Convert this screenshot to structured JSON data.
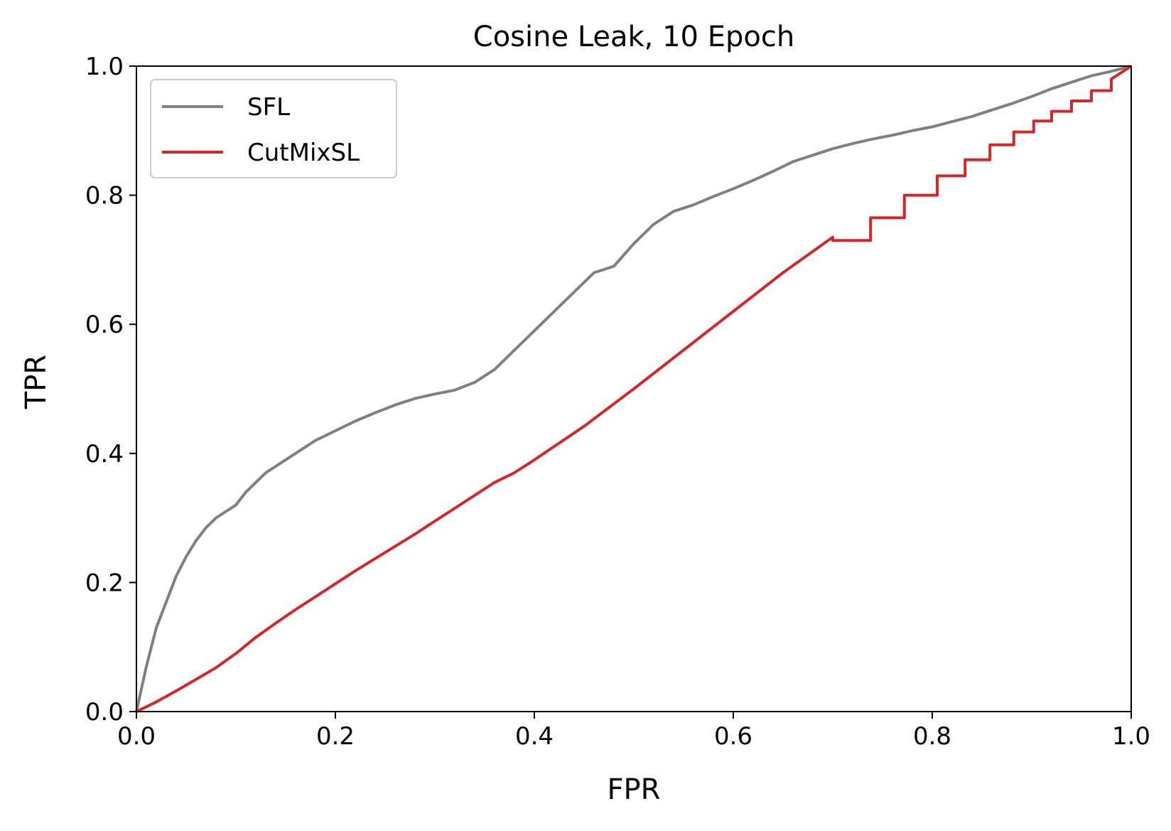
{
  "chart_data": {
    "type": "line",
    "title": "Cosine Leak, 10 Epoch",
    "xlabel": "FPR",
    "ylabel": "TPR",
    "xlim": [
      0.0,
      1.0
    ],
    "ylim": [
      0.0,
      1.0
    ],
    "grid": false,
    "legend_position": "upper-left",
    "x_ticks": [
      "0.0",
      "0.2",
      "0.4",
      "0.6",
      "0.8",
      "1.0"
    ],
    "y_ticks": [
      "0.0",
      "0.2",
      "0.4",
      "0.6",
      "0.8",
      "1.0"
    ],
    "series": [
      {
        "name": "SFL",
        "color": "#808080",
        "x": [
          0.0,
          0.005,
          0.01,
          0.015,
          0.02,
          0.03,
          0.04,
          0.05,
          0.06,
          0.07,
          0.08,
          0.09,
          0.1,
          0.11,
          0.12,
          0.13,
          0.14,
          0.16,
          0.18,
          0.2,
          0.22,
          0.24,
          0.26,
          0.28,
          0.3,
          0.32,
          0.34,
          0.36,
          0.38,
          0.4,
          0.42,
          0.44,
          0.46,
          0.48,
          0.5,
          0.52,
          0.54,
          0.56,
          0.58,
          0.6,
          0.62,
          0.64,
          0.66,
          0.68,
          0.7,
          0.72,
          0.74,
          0.76,
          0.78,
          0.8,
          0.82,
          0.84,
          0.86,
          0.88,
          0.9,
          0.92,
          0.94,
          0.96,
          0.98,
          1.0
        ],
        "y": [
          0.0,
          0.035,
          0.07,
          0.1,
          0.13,
          0.17,
          0.21,
          0.24,
          0.265,
          0.285,
          0.3,
          0.31,
          0.32,
          0.34,
          0.355,
          0.37,
          0.38,
          0.4,
          0.42,
          0.435,
          0.45,
          0.463,
          0.475,
          0.485,
          0.492,
          0.498,
          0.51,
          0.53,
          0.56,
          0.59,
          0.62,
          0.65,
          0.68,
          0.69,
          0.725,
          0.755,
          0.775,
          0.785,
          0.798,
          0.81,
          0.823,
          0.837,
          0.852,
          0.862,
          0.872,
          0.88,
          0.887,
          0.893,
          0.9,
          0.906,
          0.914,
          0.922,
          0.932,
          0.942,
          0.953,
          0.965,
          0.975,
          0.985,
          0.992,
          1.0
        ]
      },
      {
        "name": "CutMixSL",
        "color": "#d62728",
        "x": [
          0.0,
          0.02,
          0.04,
          0.06,
          0.08,
          0.1,
          0.12,
          0.14,
          0.16,
          0.18,
          0.2,
          0.22,
          0.24,
          0.26,
          0.28,
          0.3,
          0.32,
          0.34,
          0.36,
          0.38,
          0.4,
          0.45,
          0.5,
          0.55,
          0.6,
          0.65,
          0.7,
          0.7,
          0.738,
          0.738,
          0.772,
          0.772,
          0.805,
          0.805,
          0.833,
          0.833,
          0.858,
          0.858,
          0.882,
          0.882,
          0.902,
          0.902,
          0.92,
          0.92,
          0.94,
          0.94,
          0.96,
          0.96,
          0.98,
          0.98,
          1.0
        ],
        "y": [
          0.0,
          0.015,
          0.032,
          0.05,
          0.068,
          0.09,
          0.115,
          0.137,
          0.158,
          0.178,
          0.198,
          0.218,
          0.237,
          0.256,
          0.275,
          0.295,
          0.315,
          0.335,
          0.355,
          0.37,
          0.39,
          0.442,
          0.5,
          0.56,
          0.62,
          0.68,
          0.735,
          0.73,
          0.73,
          0.765,
          0.765,
          0.8,
          0.8,
          0.83,
          0.83,
          0.855,
          0.855,
          0.878,
          0.878,
          0.898,
          0.898,
          0.915,
          0.915,
          0.93,
          0.93,
          0.946,
          0.946,
          0.962,
          0.962,
          0.98,
          1.0
        ]
      }
    ]
  }
}
